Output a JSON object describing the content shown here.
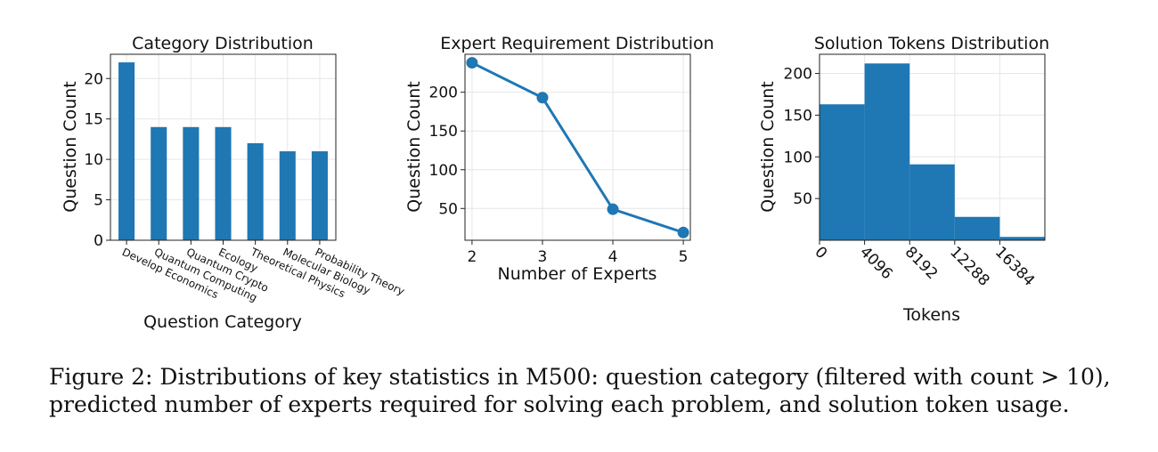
{
  "chart_data": [
    {
      "type": "bar",
      "title": "Category Distribution",
      "xlabel": "Question Category",
      "ylabel": "Question Count",
      "categories": [
        "Develop Economics",
        "Quantum Computing",
        "Quantum Crypto",
        "Ecology",
        "Theoretical Physics",
        "Molecular Biology",
        "Probability Theory"
      ],
      "values": [
        22,
        14,
        14,
        14,
        12,
        11,
        11
      ],
      "ylim": [
        0,
        23
      ],
      "yticks": [
        0,
        5,
        10,
        15,
        20
      ],
      "grid": true,
      "color": "#1f77b4"
    },
    {
      "type": "line",
      "title": "Expert Requirement Distribution",
      "xlabel": "Number of Experts",
      "ylabel": "Question Count",
      "x": [
        2,
        3,
        4,
        5
      ],
      "values": [
        238,
        193,
        49,
        19
      ],
      "xlim": [
        1.9,
        5.1
      ],
      "ylim": [
        9,
        249
      ],
      "xticks": [
        2,
        3,
        4,
        5
      ],
      "yticks": [
        50,
        100,
        150,
        200
      ],
      "grid": true,
      "color": "#1f77b4"
    },
    {
      "type": "bar",
      "subtype": "histogram",
      "title": "Solution Tokens Distribution",
      "xlabel": "Tokens",
      "ylabel": "Question Count",
      "bin_edges": [
        0,
        4096,
        8192,
        12288,
        16384,
        20480
      ],
      "values": [
        163,
        212,
        91,
        28,
        4
      ],
      "xlim": [
        0,
        20480
      ],
      "ylim": [
        0,
        223
      ],
      "xticks": [
        0,
        4096,
        8192,
        12288,
        16384
      ],
      "yticks": [
        50,
        100,
        150,
        200
      ],
      "grid": true,
      "color": "#1f77b4"
    }
  ],
  "caption": {
    "line1": "Figure 2: Distributions of key statistics in M500: question category (filtered with count > 10),",
    "line2": "predicted number of experts required for solving each problem, and solution token usage."
  }
}
